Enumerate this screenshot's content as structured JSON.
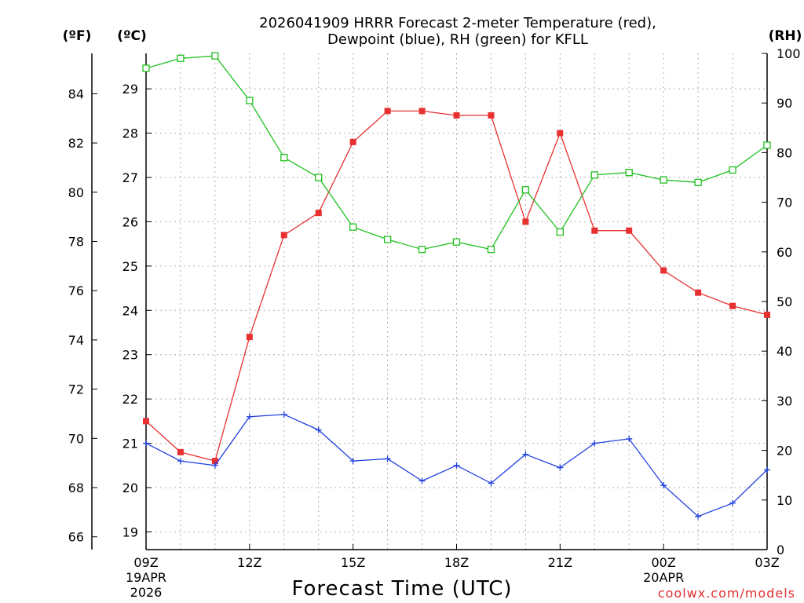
{
  "chart_data": {
    "type": "line",
    "title_line1": "2026041909 HRRR Forecast 2-meter Temperature (red),",
    "title_line2": "Dewpoint (blue), RH (green) for KFLL",
    "xlabel": "Forecast Time (UTC)",
    "credit": "coolwx.com/models",
    "units": {
      "fahrenheit": "(ºF)",
      "celsius": "(ºC)",
      "rh": "(RH)"
    },
    "x_hours": [
      0,
      1,
      2,
      3,
      4,
      5,
      6,
      7,
      8,
      9,
      10,
      11,
      12,
      13,
      14,
      15,
      16,
      17,
      18
    ],
    "xlim": [
      0,
      18
    ],
    "x_ticks": [
      {
        "hour": 0,
        "label": "09Z",
        "sub1": "19APR",
        "sub2": "2026"
      },
      {
        "hour": 3,
        "label": "12Z",
        "sub1": "",
        "sub2": ""
      },
      {
        "hour": 6,
        "label": "15Z",
        "sub1": "",
        "sub2": ""
      },
      {
        "hour": 9,
        "label": "18Z",
        "sub1": "",
        "sub2": ""
      },
      {
        "hour": 12,
        "label": "21Z",
        "sub1": "",
        "sub2": ""
      },
      {
        "hour": 15,
        "label": "00Z",
        "sub1": "20APR",
        "sub2": ""
      },
      {
        "hour": 18,
        "label": "03Z",
        "sub1": "",
        "sub2": ""
      }
    ],
    "celsius_axis": {
      "ylim": [
        18.6,
        29.8
      ],
      "ticks": [
        "19",
        "20",
        "21",
        "22",
        "23",
        "24",
        "25",
        "26",
        "27",
        "28",
        "29"
      ]
    },
    "fahrenheit_axis": {
      "ticks": [
        "66",
        "68",
        "70",
        "72",
        "74",
        "76",
        "78",
        "80",
        "82",
        "84"
      ]
    },
    "rh_axis": {
      "ylim": [
        0,
        100
      ],
      "ticks": [
        "0",
        "10",
        "20",
        "30",
        "40",
        "50",
        "60",
        "70",
        "80",
        "90",
        "100"
      ]
    },
    "series": [
      {
        "name": "Temperature",
        "unit": "C",
        "color": "#e83030",
        "marker": "filled-square",
        "values": [
          21.5,
          20.8,
          20.6,
          23.4,
          25.7,
          26.2,
          27.8,
          28.5,
          28.5,
          28.4,
          28.4,
          26.0,
          28.0,
          25.8,
          25.8,
          24.9,
          24.4,
          24.1,
          23.9
        ]
      },
      {
        "name": "Dewpoint",
        "unit": "C",
        "color": "#2040e0",
        "marker": "plus",
        "values": [
          21.0,
          20.6,
          20.5,
          21.6,
          21.65,
          21.3,
          20.6,
          20.65,
          20.15,
          20.5,
          20.1,
          20.75,
          20.45,
          21.0,
          21.1,
          20.05,
          19.35,
          19.65,
          20.4
        ]
      },
      {
        "name": "RH",
        "unit": "%",
        "color": "#20c020",
        "marker": "open-square",
        "values": [
          97,
          99,
          99.5,
          90.5,
          79,
          75,
          65,
          62.5,
          60.5,
          62,
          60.5,
          72.5,
          64,
          75.5,
          76,
          74.5,
          74,
          76.5,
          81.5
        ]
      }
    ]
  }
}
